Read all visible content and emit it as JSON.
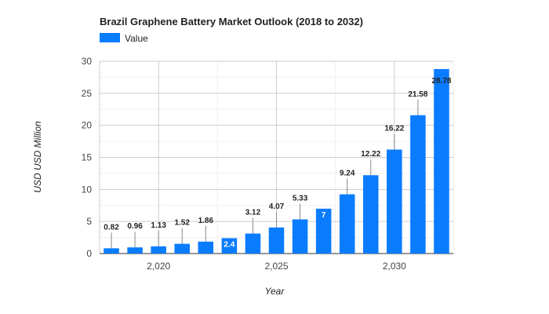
{
  "chart_data": {
    "type": "bar",
    "title": "Brazil Graphene Battery Market Outlook (2018 to 2032)",
    "xlabel": "Year",
    "ylabel": "USD USD Million",
    "legend": {
      "position": "top-left",
      "entries": [
        "Value"
      ]
    },
    "grid": true,
    "xlim": [
      2017.5,
      2032.5
    ],
    "ylim": [
      0,
      30
    ],
    "x_ticks": [
      2020,
      2025,
      2030
    ],
    "x_tick_labels": [
      "2,020",
      "2,025",
      "2,030"
    ],
    "y_ticks": [
      0,
      5,
      10,
      15,
      20,
      25,
      30
    ],
    "y_tick_labels": [
      "0",
      "5",
      "10",
      "15",
      "20",
      "25",
      "30"
    ],
    "color": "#0a7cff",
    "series": [
      {
        "name": "Value",
        "x": [
          2018,
          2019,
          2020,
          2021,
          2022,
          2023,
          2024,
          2025,
          2026,
          2027,
          2028,
          2029,
          2030,
          2031,
          2032
        ],
        "values": [
          0.82,
          0.96,
          1.13,
          1.52,
          1.86,
          2.4,
          3.12,
          4.07,
          5.33,
          7,
          9.24,
          12.22,
          16.22,
          21.58,
          28.78
        ],
        "labels": [
          "0.82",
          "0.96",
          "1.13",
          "1.52",
          "1.86",
          "2.4",
          "3.12",
          "4.07",
          "5.33",
          "7",
          "9.24",
          "12.22",
          "16.22",
          "21.58",
          "28.78"
        ]
      }
    ]
  }
}
